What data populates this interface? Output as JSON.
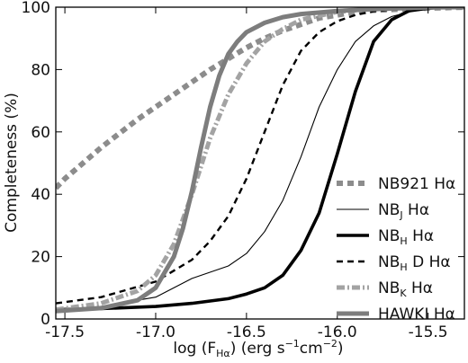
{
  "chart_data": {
    "type": "line",
    "title": "",
    "xlabel": "log (F_Hα) (erg s⁻¹cm⁻²)",
    "ylabel": "Completeness (%)",
    "xlim": [
      -17.55,
      -15.3
    ],
    "ylim": [
      0,
      100
    ],
    "x_ticks": [
      -17.5,
      -17.0,
      -16.5,
      -16.0,
      -15.5
    ],
    "x_tick_labels": [
      "-17.5",
      "-17.0",
      "-16.5",
      "-16.0",
      "-15.5"
    ],
    "y_ticks": [
      0,
      20,
      40,
      60,
      80,
      100
    ],
    "y_tick_labels": [
      "0",
      "20",
      "40",
      "60",
      "80",
      "100"
    ],
    "grid": false,
    "legend_position": "lower-right",
    "series": [
      {
        "name": "NB921 Hα",
        "color": "#8c8c8c",
        "style": "dotted-thick",
        "x": [
          -17.55,
          -17.5,
          -17.4,
          -17.3,
          -17.2,
          -17.1,
          -17.0,
          -16.9,
          -16.8,
          -16.7,
          -16.6,
          -16.5,
          -16.4,
          -16.3,
          -16.2,
          -16.1,
          -16.0,
          -15.9,
          -15.8,
          -15.6,
          -15.3
        ],
        "y": [
          42,
          45,
          50,
          55,
          59.5,
          64,
          68,
          72,
          76,
          80,
          83.5,
          87,
          90,
          92.5,
          94.5,
          96.5,
          97.5,
          98.5,
          99,
          99.5,
          100
        ]
      },
      {
        "name": "NB_J Hα",
        "color": "#000000",
        "style": "thin",
        "x": [
          -17.55,
          -17.3,
          -17.0,
          -16.8,
          -16.6,
          -16.5,
          -16.4,
          -16.3,
          -16.2,
          -16.1,
          -16.0,
          -15.9,
          -15.8,
          -15.7,
          -15.6,
          -15.5,
          -15.3
        ],
        "y": [
          3,
          4,
          7,
          13,
          17,
          21,
          28,
          38,
          52,
          68,
          80,
          89,
          94,
          97,
          98.5,
          99.3,
          100
        ]
      },
      {
        "name": "NB_H Hα",
        "color": "#000000",
        "style": "thick",
        "x": [
          -17.55,
          -17.3,
          -17.0,
          -16.8,
          -16.6,
          -16.5,
          -16.4,
          -16.3,
          -16.2,
          -16.1,
          -16.0,
          -15.9,
          -15.8,
          -15.7,
          -15.6,
          -15.5,
          -15.3
        ],
        "y": [
          3,
          3.3,
          4,
          5,
          6.5,
          8,
          10,
          14,
          22,
          34,
          53,
          73,
          89,
          96,
          99,
          99.8,
          100
        ]
      },
      {
        "name": "NB_H D Hα",
        "color": "#000000",
        "style": "dashed",
        "x": [
          -17.55,
          -17.3,
          -17.0,
          -16.8,
          -16.7,
          -16.6,
          -16.5,
          -16.4,
          -16.3,
          -16.2,
          -16.1,
          -16.0,
          -15.9,
          -15.8,
          -15.6,
          -15.3
        ],
        "y": [
          5,
          7,
          12,
          19,
          25,
          33,
          45,
          60,
          75,
          86,
          92,
          95.5,
          97.5,
          98.7,
          99.6,
          100
        ]
      },
      {
        "name": "NB_K Hα",
        "color": "#a3a3a3",
        "style": "dash-dot-thick",
        "x": [
          -17.55,
          -17.3,
          -17.1,
          -17.0,
          -16.9,
          -16.8,
          -16.7,
          -16.6,
          -16.5,
          -16.4,
          -16.3,
          -16.2,
          -16.0,
          -15.8,
          -15.5,
          -15.3
        ],
        "y": [
          3,
          5,
          9,
          14,
          24,
          40,
          58,
          72,
          82,
          89,
          93,
          96,
          98.5,
          99.5,
          100,
          100
        ]
      },
      {
        "name": "HAWKI Hα",
        "color": "#7d7d7d",
        "style": "solid-thick",
        "x": [
          -17.55,
          -17.3,
          -17.1,
          -17.0,
          -16.9,
          -16.85,
          -16.8,
          -16.75,
          -16.7,
          -16.65,
          -16.6,
          -16.55,
          -16.5,
          -16.4,
          -16.3,
          -16.2,
          -16.0,
          -15.8,
          -15.5,
          -15.3
        ],
        "y": [
          2.5,
          3.5,
          6,
          10,
          20,
          29,
          41,
          55,
          68,
          78,
          85,
          89,
          92,
          95,
          96.8,
          97.8,
          98.8,
          99.4,
          99.9,
          100
        ]
      }
    ]
  },
  "legend": [
    {
      "name_main": "NB921",
      "name_sub": "",
      "name_tail": " Hα"
    },
    {
      "name_main": "NB",
      "name_sub": "J",
      "name_tail": " Hα"
    },
    {
      "name_main": "NB",
      "name_sub": "H",
      "name_tail": " Hα"
    },
    {
      "name_main": "NB",
      "name_sub": "H",
      "name_tail": " D Hα"
    },
    {
      "name_main": "NB",
      "name_sub": "K",
      "name_tail": " Hα"
    },
    {
      "name_main": "HAWKI",
      "name_sub": "",
      "name_tail": " Hα"
    }
  ],
  "axis_title_x": {
    "prefix": "log (F",
    "sub": "Hα",
    "middle": ") (erg s",
    "sup1": "−1",
    "cm": "cm",
    "sup2": "−2",
    "suffix": ")"
  },
  "axis_title_y": "Completeness (%)"
}
